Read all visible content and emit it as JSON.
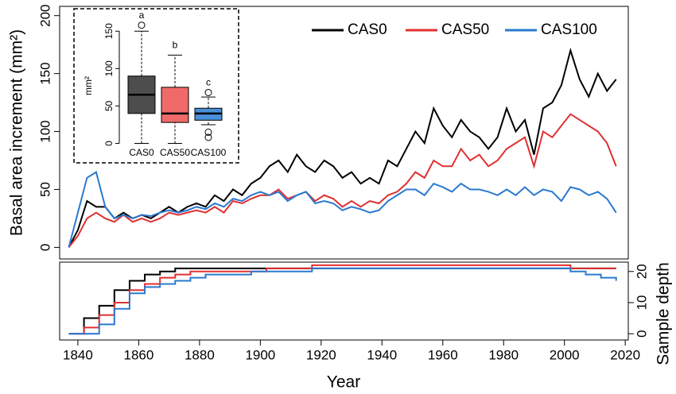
{
  "chart_data": [
    {
      "type": "line",
      "ylabel": "Basal area increment (mm²)",
      "xlim": [
        1834,
        2021
      ],
      "ylim": [
        -10,
        208
      ],
      "yticks": [
        0,
        50,
        100,
        150,
        200
      ],
      "legend": "top-right",
      "x": [
        1837,
        1840,
        1843,
        1846,
        1849,
        1852,
        1855,
        1858,
        1861,
        1864,
        1867,
        1870,
        1873,
        1876,
        1879,
        1882,
        1885,
        1888,
        1891,
        1894,
        1897,
        1900,
        1903,
        1906,
        1909,
        1912,
        1915,
        1918,
        1921,
        1924,
        1927,
        1930,
        1933,
        1936,
        1939,
        1942,
        1945,
        1948,
        1951,
        1954,
        1957,
        1960,
        1963,
        1966,
        1969,
        1972,
        1975,
        1978,
        1981,
        1984,
        1987,
        1990,
        1993,
        1996,
        1999,
        2002,
        2005,
        2008,
        2011,
        2014,
        2017
      ],
      "series": [
        {
          "name": "CAS0",
          "color": "#000000",
          "values": [
            0,
            15,
            40,
            35,
            35,
            25,
            30,
            25,
            28,
            25,
            30,
            35,
            30,
            35,
            38,
            35,
            45,
            40,
            50,
            45,
            55,
            60,
            70,
            75,
            65,
            80,
            70,
            65,
            75,
            70,
            60,
            65,
            55,
            60,
            55,
            75,
            70,
            85,
            100,
            90,
            120,
            105,
            95,
            110,
            100,
            95,
            85,
            95,
            120,
            100,
            110,
            80,
            120,
            125,
            140,
            170,
            145,
            130,
            150,
            135,
            145
          ]
        },
        {
          "name": "CAS50",
          "color": "#e03030",
          "values": [
            0,
            10,
            25,
            30,
            25,
            22,
            28,
            22,
            25,
            22,
            25,
            30,
            28,
            30,
            32,
            30,
            35,
            30,
            40,
            38,
            42,
            45,
            45,
            50,
            42,
            45,
            48,
            40,
            45,
            42,
            35,
            40,
            35,
            40,
            38,
            45,
            48,
            55,
            65,
            60,
            75,
            70,
            70,
            85,
            75,
            80,
            70,
            75,
            85,
            90,
            95,
            70,
            100,
            95,
            105,
            115,
            110,
            105,
            100,
            90,
            70
          ]
        },
        {
          "name": "CAS100",
          "color": "#2a7ad0",
          "values": [
            0,
            30,
            60,
            65,
            35,
            25,
            28,
            25,
            28,
            27,
            30,
            32,
            30,
            32,
            35,
            33,
            38,
            35,
            42,
            40,
            45,
            48,
            45,
            48,
            40,
            45,
            48,
            38,
            40,
            38,
            32,
            35,
            33,
            30,
            32,
            40,
            45,
            50,
            50,
            45,
            55,
            52,
            48,
            55,
            50,
            50,
            48,
            45,
            50,
            45,
            52,
            45,
            50,
            48,
            40,
            52,
            50,
            45,
            48,
            42,
            30
          ]
        }
      ]
    },
    {
      "type": "box",
      "ylabel": "mm²",
      "ylim": [
        -26,
        180
      ],
      "yticks": [
        0,
        50,
        100,
        150
      ],
      "categories": [
        "CAS0",
        "CAS50",
        "CAS100"
      ],
      "annotations": [
        "a",
        "b",
        "c"
      ],
      "boxes": [
        {
          "color": "#4d4d4d",
          "min": 0,
          "q1": 40,
          "median": 65,
          "q3": 90,
          "max": 150,
          "outliers": [
            158
          ]
        },
        {
          "color": "#f06a6a",
          "min": 0,
          "q1": 28,
          "median": 40,
          "q3": 75,
          "max": 118,
          "outliers": []
        },
        {
          "color": "#4a90d9",
          "min": 25,
          "q1": 31,
          "median": 40,
          "q3": 47,
          "max": 62,
          "outliers": [
            68,
            15,
            8
          ]
        }
      ]
    },
    {
      "type": "step",
      "xlabel": "Year",
      "y2label": "Sample depth",
      "xlim": [
        1834,
        2021
      ],
      "y2lim": [
        -2,
        23
      ],
      "xticks": [
        1840,
        1860,
        1880,
        1900,
        1920,
        1940,
        1960,
        1980,
        2000,
        2020
      ],
      "y2ticks": [
        0,
        10,
        20
      ],
      "x": [
        1837,
        1842,
        1847,
        1852,
        1857,
        1862,
        1867,
        1872,
        1877,
        1882,
        1887,
        1892,
        1897,
        1902,
        1907,
        1912,
        1917,
        1922,
        1927,
        1932,
        1937,
        1942,
        1947,
        1952,
        1957,
        1962,
        1967,
        1972,
        1977,
        1982,
        1987,
        1992,
        1997,
        2002,
        2007,
        2012,
        2017
      ],
      "series": [
        {
          "name": "CAS0",
          "color": "#000000",
          "axis": "y2",
          "values": [
            0,
            5,
            9,
            14,
            17,
            19,
            20,
            21,
            21,
            21,
            21,
            21,
            21,
            21,
            21,
            21,
            21,
            21,
            21,
            21,
            21,
            21,
            21,
            21,
            21,
            21,
            21,
            21,
            21,
            21,
            21,
            21,
            21,
            21,
            21,
            21,
            21
          ]
        },
        {
          "name": "CAS50",
          "color": "#e03030",
          "axis": "y2",
          "values": [
            0,
            2,
            6,
            10,
            14,
            16,
            18,
            19,
            20,
            20,
            20,
            20,
            20,
            21,
            21,
            21,
            22,
            22,
            22,
            22,
            22,
            22,
            22,
            22,
            22,
            22,
            22,
            22,
            22,
            22,
            22,
            22,
            22,
            21,
            21,
            21,
            21
          ]
        },
        {
          "name": "CAS100",
          "color": "#2a7ad0",
          "axis": "y2",
          "values": [
            0,
            0,
            3,
            8,
            13,
            15,
            16,
            17,
            18,
            19,
            19,
            19,
            20,
            20,
            20,
            20,
            21,
            21,
            21,
            21,
            21,
            21,
            21,
            21,
            21,
            21,
            21,
            21,
            21,
            21,
            21,
            21,
            21,
            20,
            19,
            18,
            17
          ]
        }
      ]
    }
  ]
}
